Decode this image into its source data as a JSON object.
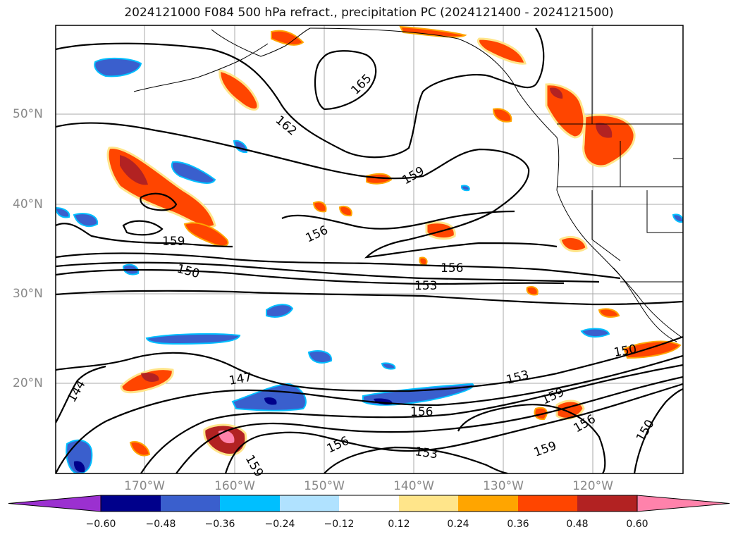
{
  "title": "2024121000 F084 500 hPa refract., precipitation PC (2024121400 - 2024121500)",
  "lon_labels": [
    "170°W",
    "160°W",
    "150°W",
    "140°W",
    "130°W",
    "120°W"
  ],
  "lat_labels": [
    "50°N",
    "40°N",
    "30°N",
    "20°N"
  ],
  "contour_labels": [
    "165",
    "162",
    "159",
    "156",
    "159",
    "150",
    "156",
    "153",
    "147",
    "144",
    "150",
    "153",
    "159",
    "156",
    "156",
    "153",
    "159",
    "156",
    "159",
    "150"
  ],
  "colorbar": {
    "ticks": [
      "−0.60",
      "−0.48",
      "−0.36",
      "−0.24",
      "−0.12",
      "0.12",
      "0.24",
      "0.36",
      "0.48",
      "0.60"
    ],
    "colors": [
      "#9b30d0",
      "#00008b",
      "#3a5fcd",
      "#00bfff",
      "#b0e2ff",
      "#ffffff",
      "#ffe58a",
      "#ffa500",
      "#ff4500",
      "#b22222",
      "#ff82ab"
    ]
  }
}
